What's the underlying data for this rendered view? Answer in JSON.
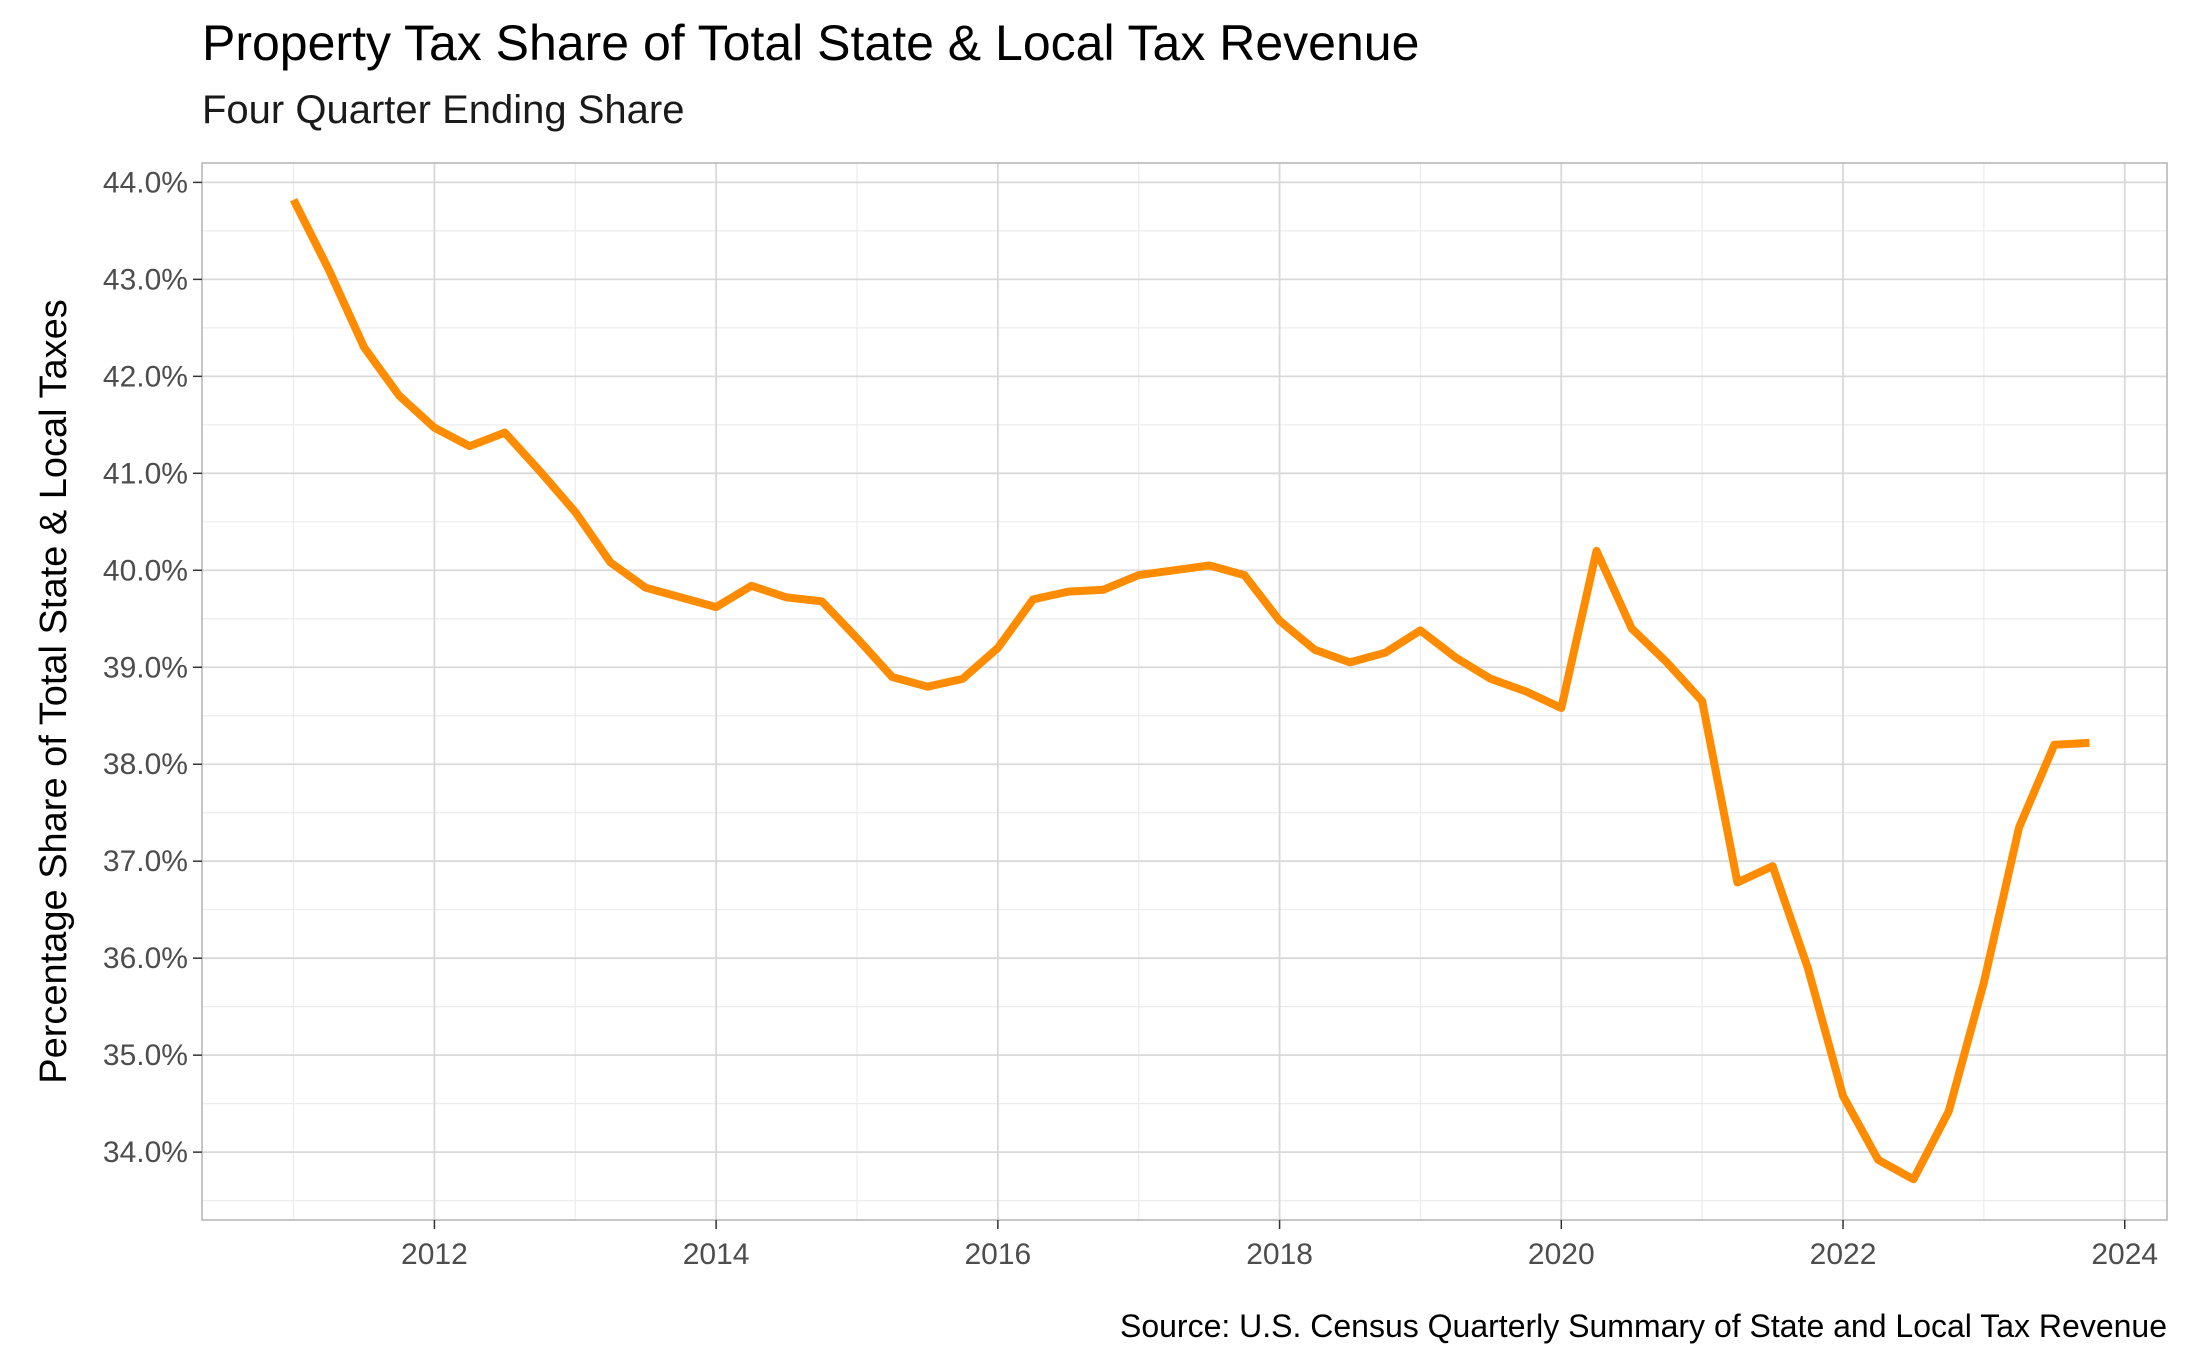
{
  "chart_data": {
    "type": "line",
    "title": "Property Tax Share of Total State & Local Tax Revenue",
    "subtitle": "Four Quarter Ending Share",
    "caption": "Source: U.S. Census Quarterly Summary of State and Local Tax Revenue",
    "xlabel": "",
    "ylabel": "Percentage Share of Total State & Local Taxes",
    "xlim": [
      2010.35,
      2024.3
    ],
    "ylim": [
      33.3,
      44.2
    ],
    "x_ticks": [
      2012,
      2014,
      2016,
      2018,
      2020,
      2022,
      2024
    ],
    "y_ticks": [
      34.0,
      35.0,
      36.0,
      37.0,
      38.0,
      39.0,
      40.0,
      41.0,
      42.0,
      43.0,
      44.0
    ],
    "y_tick_labels": [
      "34.0%",
      "35.0%",
      "36.0%",
      "37.0%",
      "38.0%",
      "39.0%",
      "40.0%",
      "41.0%",
      "42.0%",
      "43.0%",
      "44.0%"
    ],
    "grid": true,
    "line_color": "#ff8c00",
    "series": [
      {
        "x": [
          2011.0,
          2011.25,
          2011.5,
          2011.75,
          2012.0,
          2012.25,
          2012.5,
          2012.75,
          2013.0,
          2013.25,
          2013.5,
          2013.75,
          2014.0,
          2014.25,
          2014.5,
          2014.75,
          2015.0,
          2015.25,
          2015.5,
          2015.75,
          2016.0,
          2016.25,
          2016.5,
          2016.75,
          2017.0,
          2017.25,
          2017.5,
          2017.75,
          2018.0,
          2018.25,
          2018.5,
          2018.75,
          2019.0,
          2019.25,
          2019.5,
          2019.75,
          2020.0,
          2020.25,
          2020.5,
          2020.75,
          2021.0,
          2021.25,
          2021.5,
          2021.75,
          2022.0,
          2022.25,
          2022.5,
          2022.75,
          2023.0,
          2023.25,
          2023.5,
          2023.75
        ],
        "values": [
          43.82,
          43.1,
          42.3,
          41.8,
          41.47,
          41.28,
          41.42,
          41.02,
          40.6,
          40.08,
          39.82,
          39.72,
          39.62,
          39.84,
          39.72,
          39.68,
          39.3,
          38.9,
          38.8,
          38.88,
          39.2,
          39.7,
          39.78,
          39.8,
          39.95,
          40.0,
          40.05,
          39.95,
          39.48,
          39.18,
          39.05,
          39.15,
          39.38,
          39.1,
          38.88,
          38.75,
          38.58,
          40.2,
          39.4,
          39.05,
          38.65,
          36.78,
          36.95,
          35.9,
          34.58,
          33.92,
          33.72,
          34.42,
          35.75,
          37.35,
          38.2,
          38.22
        ]
      }
    ]
  }
}
